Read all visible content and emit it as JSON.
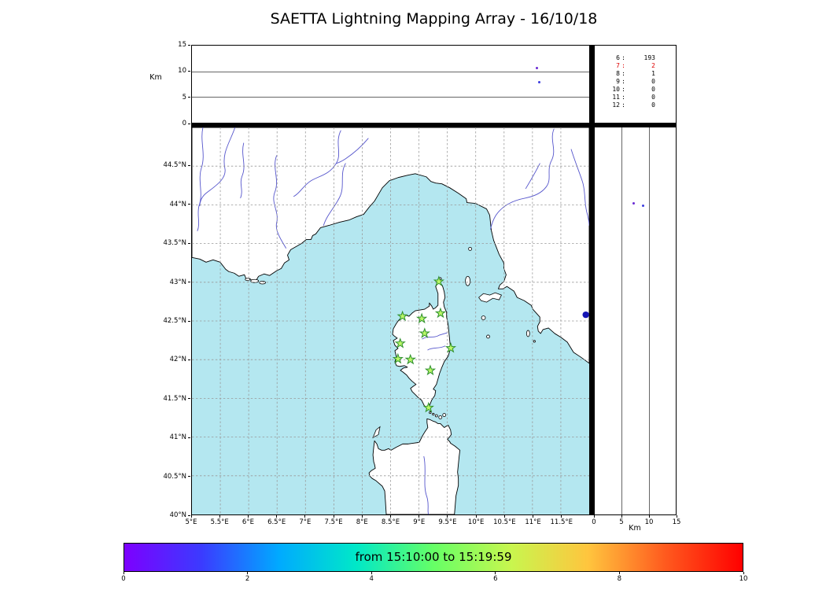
{
  "title": "SAETTA Lightning Mapping Array - 16/10/18",
  "map_colors": {
    "sea": "#b4e7f0",
    "land": "#ffffff",
    "coastline": "#000000",
    "river": "#5555cc",
    "grid": "#999999"
  },
  "station_marker": {
    "fill": "#baf768",
    "stroke": "#2d8f2d"
  },
  "chart_data": [
    {
      "type": "scatter",
      "panel": "altitude-vs-longitude",
      "ylabel": "Km",
      "ylim": [
        0,
        15
      ],
      "yticks": [
        0,
        5,
        10,
        15
      ],
      "xlim_lon_deg": [
        5,
        12
      ],
      "grid_alt_km": [
        5,
        10
      ],
      "points": [
        {
          "lon": 11.05,
          "alt_km": 10.6,
          "color": "#6a2bd4"
        },
        {
          "lon": 11.09,
          "alt_km": 7.9,
          "color": "#3c3ce0"
        }
      ]
    },
    {
      "type": "table",
      "panel": "sources-per-contributing-stations",
      "rows": [
        {
          "stations": "6",
          "sources": "193",
          "highlight": false
        },
        {
          "stations": "7",
          "sources": "2",
          "highlight": true
        },
        {
          "stations": "8",
          "sources": "1",
          "highlight": false
        },
        {
          "stations": "9",
          "sources": "0",
          "highlight": false
        },
        {
          "stations": "10",
          "sources": "0",
          "highlight": false
        },
        {
          "stations": "11",
          "sources": "0",
          "highlight": false
        },
        {
          "stations": "12",
          "sources": "0",
          "highlight": false
        }
      ],
      "separator": ":",
      "highlight_color": "#dd0000"
    },
    {
      "type": "scatter",
      "panel": "plan-view-map",
      "xlim_lon_deg": [
        5,
        12
      ],
      "ylim_lat_deg": [
        40,
        45
      ],
      "grid_step_deg": 0.5,
      "lon_ticks": [
        "5°E",
        "5.5°E",
        "6°E",
        "6.5°E",
        "7°E",
        "7.5°E",
        "8°E",
        "8.5°E",
        "9°E",
        "9.5°E",
        "10°E",
        "10.5°E",
        "11°E",
        "11.5°E"
      ],
      "lat_ticks": [
        "44.5°N",
        "44°N",
        "43.5°N",
        "43°N",
        "42.5°N",
        "42°N",
        "41.5°N",
        "41°N",
        "40.5°N",
        "40°N"
      ],
      "stations_lma": [
        {
          "lon": 9.35,
          "lat": 43.01
        },
        {
          "lon": 8.71,
          "lat": 42.56
        },
        {
          "lon": 9.05,
          "lat": 42.53
        },
        {
          "lon": 9.38,
          "lat": 42.6
        },
        {
          "lon": 9.1,
          "lat": 42.34
        },
        {
          "lon": 8.67,
          "lat": 42.21
        },
        {
          "lon": 9.56,
          "lat": 42.15
        },
        {
          "lon": 8.63,
          "lat": 42.01
        },
        {
          "lon": 8.85,
          "lat": 42.0
        },
        {
          "lon": 9.2,
          "lat": 41.86
        },
        {
          "lon": 9.17,
          "lat": 41.38
        }
      ],
      "sources": [
        {
          "lon": 11.94,
          "lat": 42.58,
          "color": "#1515b5"
        }
      ]
    },
    {
      "type": "scatter",
      "panel": "altitude-vs-latitude",
      "xlabel": "Km",
      "xlim": [
        0,
        15
      ],
      "xticks": [
        0,
        5,
        10,
        15
      ],
      "ylim_lat_deg": [
        40,
        45
      ],
      "grid_alt_km": [
        5,
        10
      ],
      "points": [
        {
          "lat": 44.02,
          "alt_km": 7.2,
          "color": "#6a2bd4"
        },
        {
          "lat": 43.99,
          "alt_km": 8.9,
          "color": "#3c3ce0"
        }
      ]
    },
    {
      "type": "colorbar",
      "label": "from 15:10:00 to 15:19:59",
      "ticks": [
        0,
        2,
        4,
        6,
        8,
        10
      ],
      "value_range": [
        0,
        10
      ],
      "colormap": "rainbow",
      "gradient_hex": [
        "#7d00ff",
        "#3b3bff",
        "#00aaff",
        "#00e8c8",
        "#66ff66",
        "#c8f64e",
        "#ffc53e",
        "#ff5a1e",
        "#ff0000"
      ]
    }
  ]
}
